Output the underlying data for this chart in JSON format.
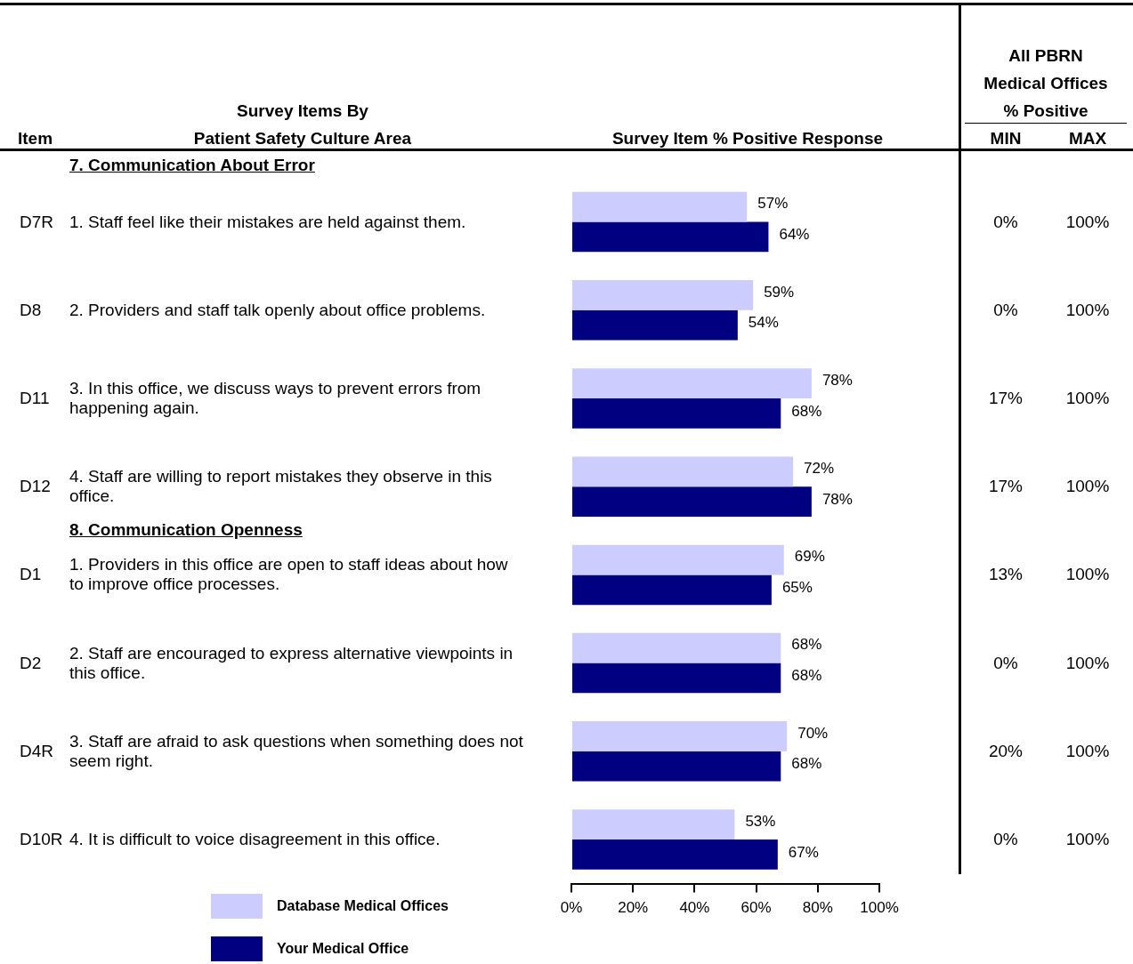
{
  "chart_data": {
    "type": "bar",
    "orientation": "horizontal",
    "categories": [
      "1. Staff feel like their mistakes are held against them.",
      "2. Providers and staff talk openly about office problems.",
      "3. In this office, we discuss ways to prevent errors from happening again.",
      "4. Staff are willing to report mistakes they observe in this office.",
      "1. Providers in this office are open to staff ideas about how to improve office processes.",
      "2. Staff are encouraged to express alternative viewpoints in this office.",
      "3. Staff are afraid to ask questions when something does not seem right.",
      "4. It is difficult to voice disagreement in this office."
    ],
    "series": [
      {
        "name": "Database Medical Offices",
        "color": "#ccccff",
        "values": [
          57,
          59,
          78,
          72,
          69,
          68,
          70,
          53
        ],
        "value_labels": [
          "57%",
          "59%",
          "78%",
          "72%",
          "69%",
          "68%",
          "70%",
          "53%"
        ]
      },
      {
        "name": "Your Medical Office",
        "color": "#000080",
        "values": [
          64,
          54,
          68,
          78,
          65,
          68,
          68,
          67
        ],
        "value_labels": [
          "64%",
          "54%",
          "68%",
          "78%",
          "65%",
          "68%",
          "68%",
          "67%"
        ]
      }
    ],
    "xlim": [
      0,
      100
    ],
    "xticks": [
      {
        "value": 0,
        "label": "0%"
      },
      {
        "value": 20,
        "label": "20%"
      },
      {
        "value": 40,
        "label": "40%"
      },
      {
        "value": 60,
        "label": "60%"
      },
      {
        "value": 80,
        "label": "80%"
      },
      {
        "value": 100,
        "label": "100%"
      }
    ],
    "legend": "bottom left",
    "annotations": [
      "Item",
      "Survey Items By",
      "Patient Safety Culture Area",
      "Survey Item % Positive Response",
      "All PBRN",
      "Medical Offices",
      "% Positive",
      "MIN",
      "MAX",
      "7.  Communication About Error",
      "D7R",
      "0%",
      "100%",
      "D8",
      "0%",
      "100%",
      "D11",
      "17%",
      "100%",
      "D12",
      "17%",
      "100%",
      "8.  Communication Openness",
      "D1",
      "13%",
      "100%",
      "D2",
      "0%",
      "100%",
      "D4R",
      "20%",
      "100%",
      "D10R",
      "0%",
      "100%"
    ]
  }
}
